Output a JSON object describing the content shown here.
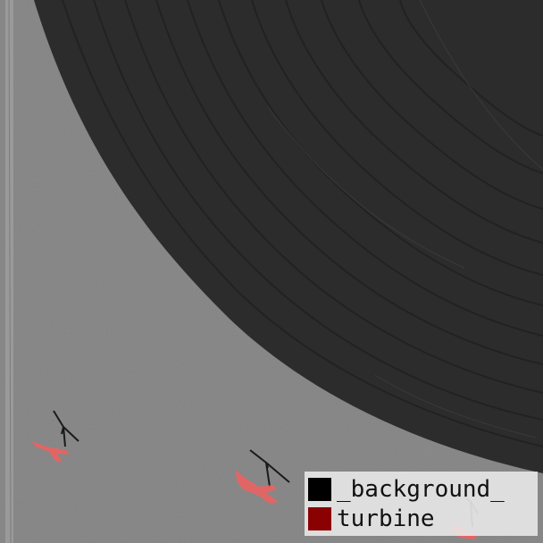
{
  "image": {
    "description_free": true
  },
  "legend": {
    "items": [
      {
        "label": "_background_",
        "color": "#000000"
      },
      {
        "label": "turbine",
        "color": "#8b0000"
      }
    ]
  },
  "overlay": {
    "turbine_mask_color": "#f06060"
  }
}
